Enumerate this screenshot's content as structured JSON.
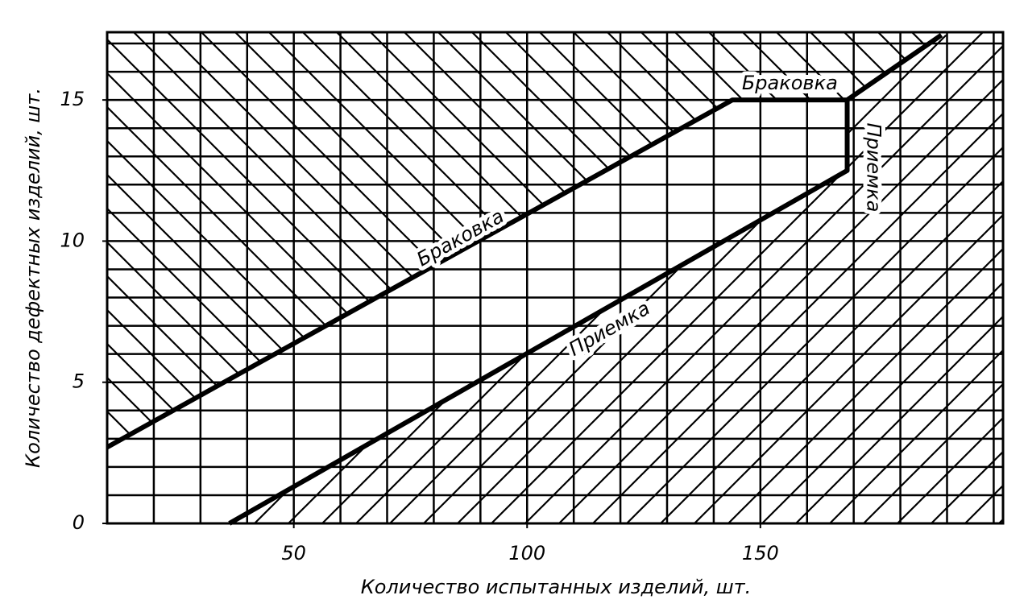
{
  "chart_data": {
    "type": "line",
    "x_label": "Количество испытанных изделий, шт.",
    "y_label": "Количество дефектных изделий, шт.",
    "xlim": [
      10,
      202
    ],
    "ylim": [
      0,
      17.4
    ],
    "xticks": [
      50,
      100,
      150
    ],
    "yticks": [
      0,
      5,
      10,
      15
    ],
    "minor_xticks": [
      20,
      30,
      40,
      50,
      60,
      70,
      80,
      90,
      100,
      110,
      120,
      130,
      140,
      150,
      160,
      170,
      180,
      190,
      200
    ],
    "minor_yticks": [
      1,
      2,
      3,
      4,
      5,
      6,
      7,
      8,
      9,
      10,
      11,
      12,
      13,
      14,
      15,
      16,
      17
    ],
    "grid": true,
    "series": [
      {
        "name": "Браковка",
        "color": "#000000",
        "x": [
          10,
          144,
          168.6,
          188.8
        ],
        "values": [
          2.7,
          15,
          15,
          17.3
        ]
      },
      {
        "name": "Приемка",
        "color": "#000000",
        "x": [
          36.2,
          168.6,
          168.6
        ],
        "values": [
          0,
          12.5,
          15
        ]
      }
    ]
  }
}
